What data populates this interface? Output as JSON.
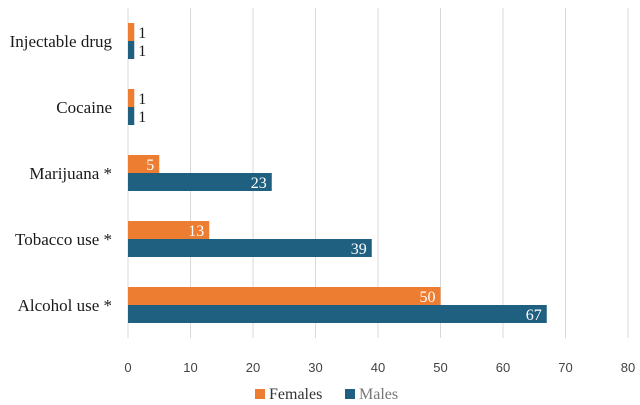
{
  "chart_data": {
    "type": "bar",
    "orientation": "horizontal",
    "categories": [
      "Injectable drug",
      "Cocaine",
      "Marijuana *",
      "Tobacco use *",
      "Alcohol use *"
    ],
    "series": [
      {
        "name": "Females",
        "color": "#ED7D31",
        "values": [
          1,
          1,
          5,
          13,
          50
        ]
      },
      {
        "name": "Males",
        "color": "#1F5F7F",
        "values": [
          1,
          1,
          23,
          39,
          67
        ]
      }
    ],
    "xlim": [
      0,
      80
    ],
    "xticks": [
      0,
      10,
      20,
      30,
      40,
      50,
      60,
      70,
      80
    ],
    "grid": true,
    "legend": "bottom-center",
    "title": "",
    "xlabel": "",
    "ylabel": ""
  }
}
